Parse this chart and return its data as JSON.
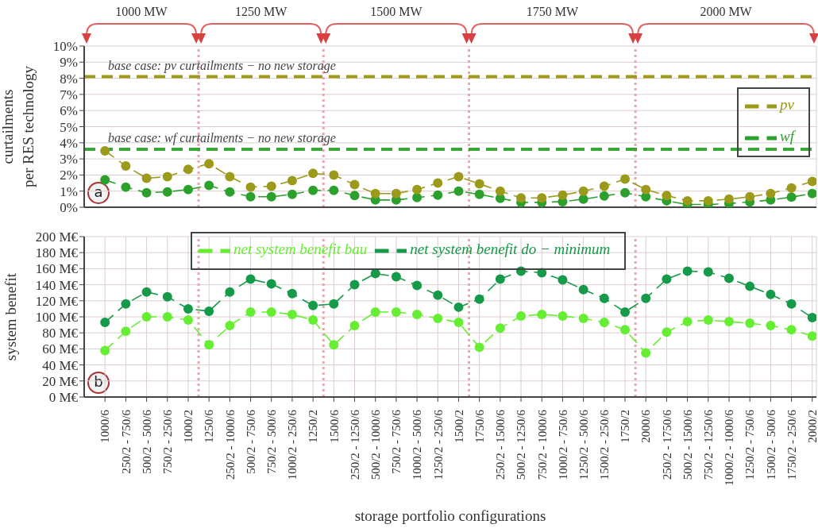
{
  "chart_data": [
    {
      "type": "line",
      "title": "a",
      "ylabel": "curtailments per RES technology",
      "categories": [
        null,
        null,
        null,
        null,
        null,
        null,
        null,
        null,
        null,
        null,
        null,
        null,
        null,
        null,
        null,
        null,
        null,
        null,
        null,
        null,
        null,
        null,
        null,
        null,
        null,
        null,
        null,
        null,
        null,
        null,
        null,
        null,
        null,
        null,
        null
      ],
      "series": [
        {
          "name": "wf",
          "color": "#2ca02c",
          "values": [
            1.7,
            1.25,
            0.9,
            0.95,
            1.1,
            1.35,
            0.95,
            0.65,
            0.65,
            0.8,
            1.05,
            1.05,
            0.73,
            0.45,
            0.45,
            0.6,
            0.75,
            1.0,
            0.8,
            0.55,
            0.3,
            0.3,
            0.35,
            0.5,
            0.7,
            0.9,
            0.65,
            0.4,
            0.17,
            0.17,
            0.23,
            0.33,
            0.45,
            0.63,
            0.85
          ]
        },
        {
          "name": "pv",
          "color": "#9c9a1a",
          "values": [
            3.5,
            2.56,
            1.8,
            1.9,
            2.35,
            2.7,
            1.9,
            1.25,
            1.3,
            1.65,
            2.1,
            2.0,
            1.4,
            0.85,
            0.85,
            1.1,
            1.5,
            1.9,
            1.45,
            1.0,
            0.58,
            0.58,
            0.75,
            1.0,
            1.3,
            1.75,
            1.1,
            0.73,
            0.4,
            0.4,
            0.5,
            0.65,
            0.85,
            1.2,
            1.6
          ]
        }
      ],
      "ylim": [
        0,
        10
      ],
      "yticks": [
        {
          "value": 0,
          "label": "0%"
        },
        {
          "value": 1,
          "label": "1%"
        },
        {
          "value": 2,
          "label": "2%"
        },
        {
          "value": 3,
          "label": "3%"
        },
        {
          "value": 4,
          "label": "4%"
        },
        {
          "value": 5,
          "label": "5%"
        },
        {
          "value": 6,
          "label": "6%"
        },
        {
          "value": 7,
          "label": "7%"
        },
        {
          "value": 8,
          "label": "8%"
        },
        {
          "value": 9,
          "label": "9%"
        },
        {
          "value": 10,
          "label": "10%"
        }
      ],
      "ref_lines": [
        {
          "axis": "y",
          "value": 8.1,
          "label": "base case: pv curtailments − no new storage",
          "color": "#a09a1c",
          "line_style": "dashed"
        },
        {
          "axis": "y",
          "value": 3.6,
          "label": "base case: wf curtailments − no new storage",
          "color": "#3aa63a",
          "line_style": "dashed"
        }
      ],
      "annotations": [
        "1000 MW",
        "1250 MW",
        "1500 MW",
        "1750 MW",
        "2000 MW"
      ],
      "grid": true,
      "legend": "right",
      "marker": "circle",
      "line_style": "dashed",
      "tick_labels": "y"
    },
    {
      "type": "line",
      "title": "b",
      "ylabel": "system benefit",
      "xlabel": "storage portfolio configurations",
      "categories": [
        "1000/6",
        "250/2 - 750/6",
        "500/2 - 500/6",
        "750/2 - 250/6",
        "1000/2",
        "1250/6",
        "250/2 - 1000/6",
        "500/2 - 750/6",
        "750/2 - 500/6",
        "1000/2 - 250/6",
        "1250/2",
        "1500/6",
        "250/2 - 1250/6",
        "500/2 - 1000/6",
        "750/2 - 750/6",
        "1000/2 - 500/6",
        "1250/2 - 250/6",
        "1500/2",
        "1750/6",
        "250/2 - 1500/6",
        "500/2 - 1250/6",
        "750/2 - 1000/6",
        "1000/2 - 750/6",
        "1250/2 - 500/6",
        "1500/2 - 250/6",
        "1750/2",
        "2000/6",
        "250/2 - 1750/6",
        "500/2 - 1500/6",
        "750/2 - 1250/6",
        "1000/2 - 1000/6",
        "1250/2 - 750/6",
        "1500/2 - 500/6",
        "1750/2 - 250/6",
        "2000/2"
      ],
      "series": [
        {
          "name": "net system benefit bau",
          "color": "#66ee33",
          "values": [
            58,
            82,
            100,
            100,
            96,
            65,
            89,
            106,
            106,
            103,
            96,
            65,
            89,
            106,
            106,
            103,
            98,
            93,
            62,
            86,
            101,
            103,
            101,
            98,
            93,
            84,
            55,
            81,
            94,
            96,
            94,
            92,
            89,
            84,
            76
          ]
        },
        {
          "name": "net system benefit do − minimum",
          "color": "#149a48",
          "values": [
            93,
            116,
            131,
            125,
            110,
            107,
            131,
            147,
            141,
            129,
            114,
            116,
            140,
            154,
            150,
            139,
            127,
            112,
            122,
            147,
            157,
            155,
            146,
            134,
            123,
            106,
            123,
            147,
            157,
            156,
            148,
            138,
            128,
            116,
            99
          ]
        }
      ],
      "ylim": [
        0,
        200
      ],
      "yticks": [
        {
          "value": 0,
          "label": "0 M€"
        },
        {
          "value": 20,
          "label": "20 M€"
        },
        {
          "value": 40,
          "label": "40 M€"
        },
        {
          "value": 60,
          "label": "60 M€"
        },
        {
          "value": 80,
          "label": "80 M€"
        },
        {
          "value": 100,
          "label": "100 M€"
        },
        {
          "value": 120,
          "label": "120 M€"
        },
        {
          "value": 140,
          "label": "140 M€"
        },
        {
          "value": 160,
          "label": "160 M€"
        },
        {
          "value": 180,
          "label": "180 M€"
        },
        {
          "value": 200,
          "label": "200 M€"
        }
      ],
      "grid": true,
      "legend": "top",
      "marker": "circle",
      "line_style": "dashed"
    }
  ]
}
